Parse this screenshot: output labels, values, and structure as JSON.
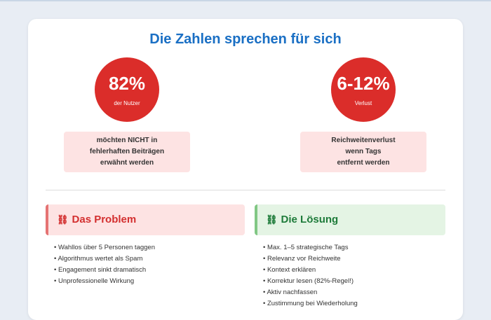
{
  "header": {
    "title": "Die Zahlen sprechen für sich"
  },
  "stats": [
    {
      "value": "82%",
      "caption": "der Nutzer",
      "description": [
        "möchten NICHT in",
        "fehlerhaften Beiträgen",
        "erwähnt werden"
      ]
    },
    {
      "value": "6-12%",
      "caption": "Verlust",
      "description": [
        "Reichweitenverlust",
        "wenn Tags",
        "entfernt werden"
      ]
    }
  ],
  "problem": {
    "icon": "⛓",
    "title": "Das Problem",
    "items": [
      "Wahllos über 5 Personen taggen",
      "Algorithmus wertet als Spam",
      "Engagement sinkt dramatisch",
      "Unprofessionelle Wirkung"
    ]
  },
  "solution": {
    "icon": "⛓",
    "title": "Die Lösung",
    "items": [
      "Max. 1–5 strategische Tags",
      "Relevanz vor Reichweite",
      "Kontext erklären",
      "Korrektur lesen (82%-Regel!)",
      "Aktiv nachfassen",
      "Zustimmung bei Wiederholung"
    ]
  }
}
